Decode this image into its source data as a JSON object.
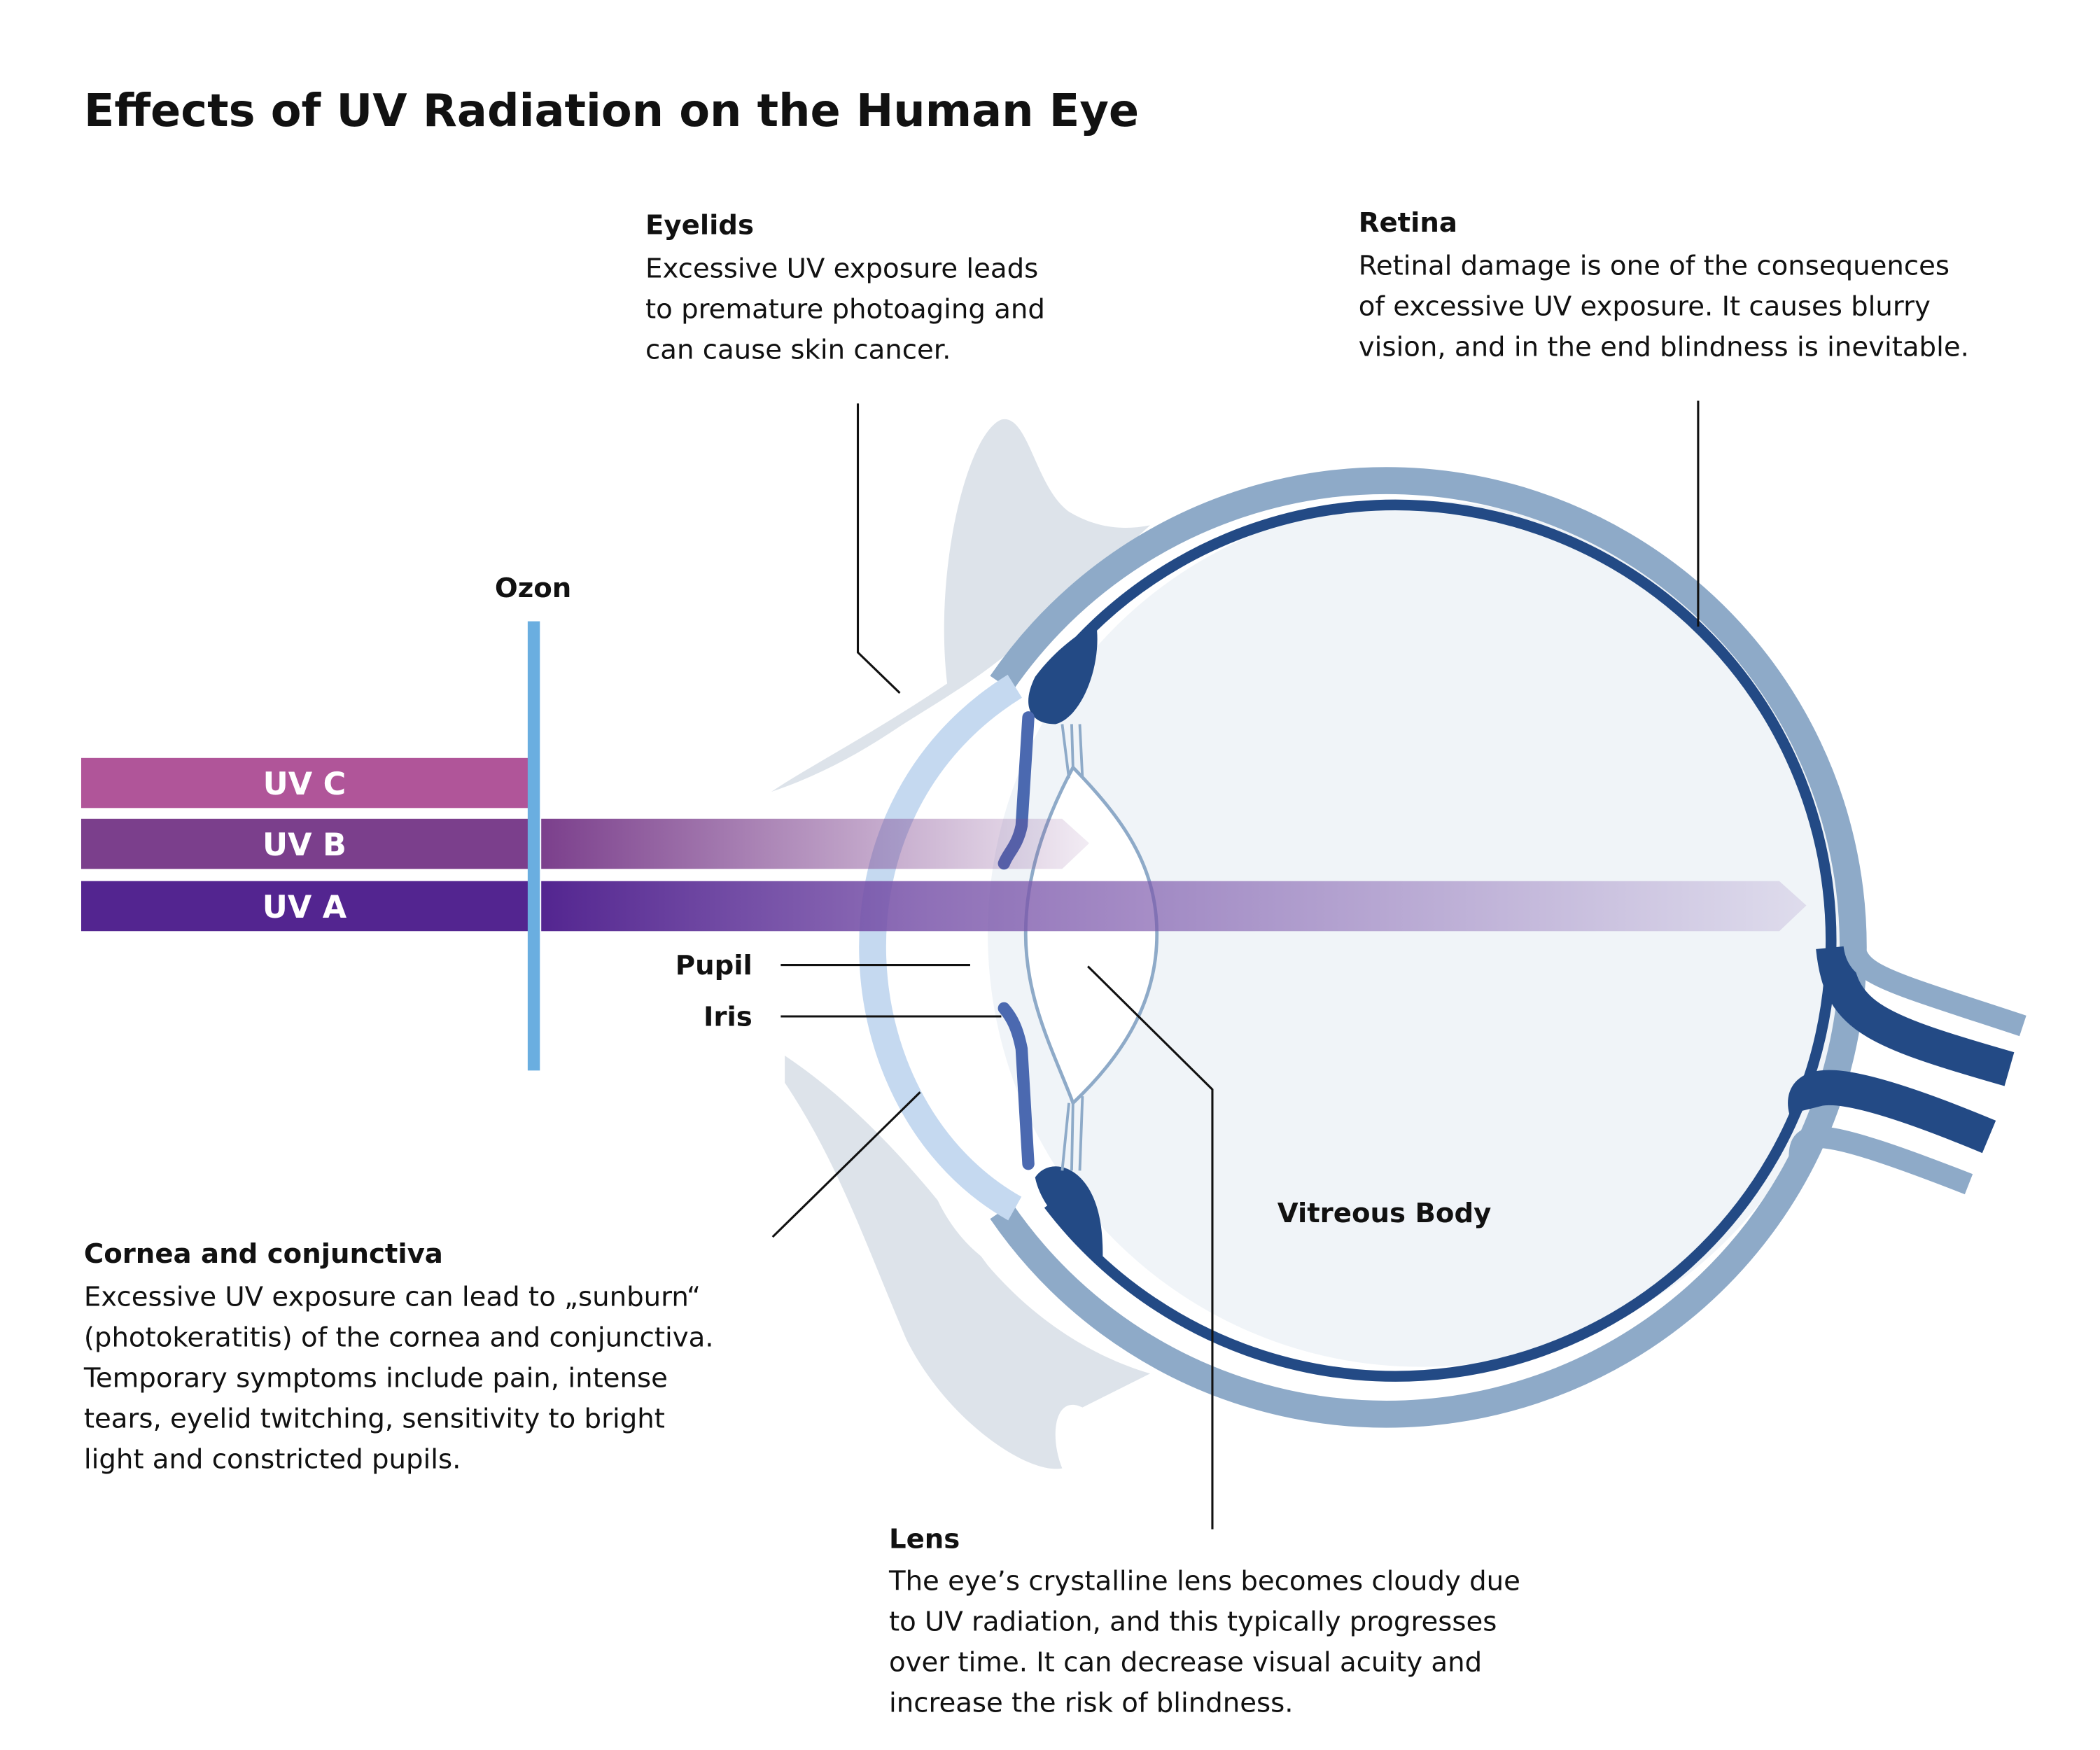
{
  "title": "Effects of UV Radiation on the Human Eye",
  "colors": {
    "uvc": "#b05599",
    "uvb": "#7b3f8c",
    "uva": "#532590",
    "ozone": "#6aaee0",
    "sclera": "#8eaac8",
    "retina": "#234a85",
    "cornea": "#c5d9f0",
    "iris": "#4b69b0",
    "vitreous": "#f0f4f8",
    "eyelid": "#dde3ea"
  },
  "ozone_label": "Ozon",
  "bands": [
    {
      "label": "UV C"
    },
    {
      "label": "UV B"
    },
    {
      "label": "UV A"
    }
  ],
  "labels": {
    "pupil": "Pupil",
    "iris": "Iris",
    "vitreous": "Vitreous Body"
  },
  "callouts": {
    "eyelids": {
      "title": "Eyelids",
      "lines": [
        "Excessive UV exposure leads",
        "to premature photoaging and",
        "can cause skin cancer."
      ]
    },
    "retina": {
      "title": "Retina",
      "lines": [
        "Retinal damage is one of the consequences",
        "of excessive UV exposure. It causes blurry",
        "vision, and in the end blindness is inevitable."
      ]
    },
    "cornea": {
      "title": "Cornea and conjunctiva",
      "lines": [
        "Excessive UV exposure can lead to „sunburn“",
        "(photokeratitis) of the cornea and conjunctiva.",
        "Temporary symptoms include pain, intense",
        "tears, eyelid twitching, sensitivity to bright",
        "light and constricted pupils."
      ]
    },
    "lens": {
      "title": "Lens",
      "lines": [
        "The eye’s crystalline lens becomes cloudy due",
        "to UV radiation, and this typically progresses",
        "over time. It can decrease visual acuity and",
        "increase the risk of blindness."
      ]
    }
  }
}
